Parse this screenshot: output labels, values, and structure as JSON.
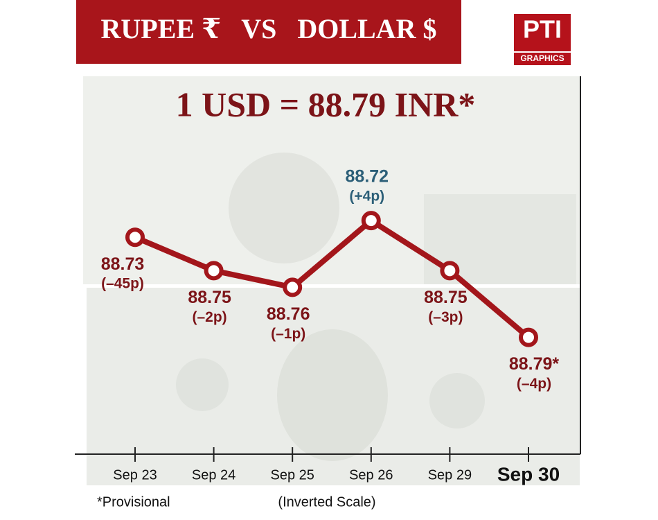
{
  "chart_data": {
    "type": "line",
    "title": "RUPEE ₹   VS   DOLLAR $",
    "headline": "1 USD = 88.79 INR*",
    "logo": "PTI",
    "logo_sub": "GRAPHICS",
    "categories": [
      "Sep 23",
      "Sep 24",
      "Sep 25",
      "Sep 26",
      "Sep 29",
      "Sep 30"
    ],
    "values": [
      88.73,
      88.75,
      88.76,
      88.72,
      88.75,
      88.79
    ],
    "value_labels": [
      "88.73",
      "88.75",
      "88.76",
      "88.72",
      "88.75",
      "88.79*"
    ],
    "changes": [
      -45,
      -2,
      -1,
      4,
      -3,
      -4
    ],
    "change_labels": [
      "(–45p)",
      "(–2p)",
      "(–1p)",
      "(+4p)",
      "(–3p)",
      "(–4p)"
    ],
    "ylim": [
      88.7,
      88.86
    ],
    "inverted": true,
    "color": "#a3161b",
    "label_color": "#7c1418",
    "up_color": "#2c5f78",
    "highlight_last_category": true,
    "note": "*Provisional",
    "scale_note": "(Inverted Scale)"
  }
}
